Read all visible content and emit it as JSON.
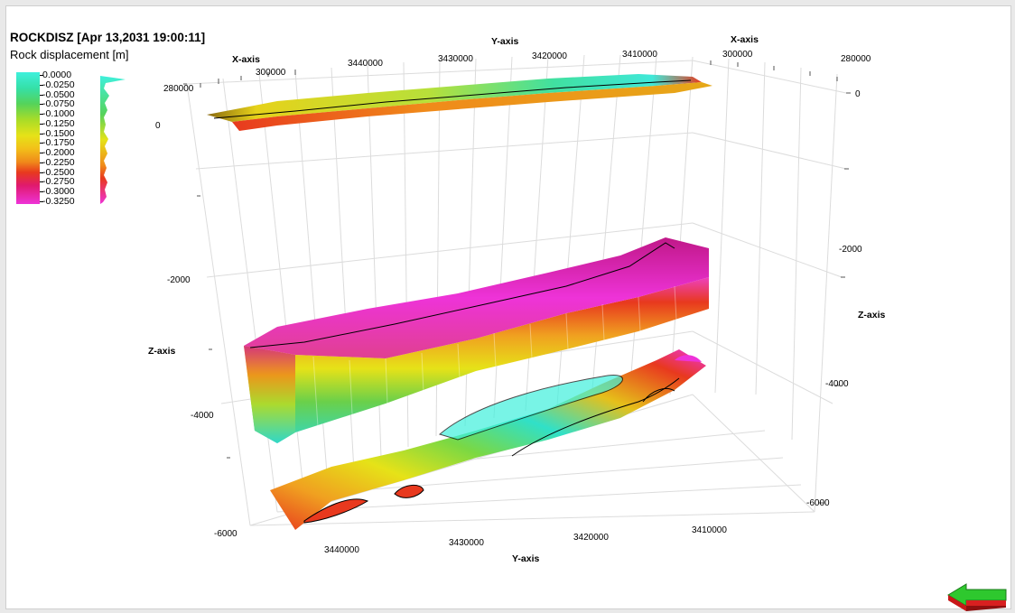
{
  "title": "ROCKDISZ [Apr 13,2031 19:00:11]",
  "subtitle": "Rock displacement [m]",
  "colorbar": {
    "labels": [
      "0.0000",
      "-0.0250",
      "-0.0500",
      "-0.0750",
      "-0.1000",
      "-0.1250",
      "-0.1500",
      "-0.1750",
      "-0.2000",
      "-0.2250",
      "-0.2500",
      "-0.2750",
      "-0.3000",
      "-0.3250"
    ]
  },
  "axes": {
    "x_axis_left": "X-axis",
    "x_axis_right": "X-axis",
    "y_axis_top": "Y-axis",
    "y_axis_bottom": "Y-axis",
    "z_axis_left": "Z-axis",
    "z_axis_right": "Z-axis",
    "x_ticks_left": [
      "280000",
      "300000"
    ],
    "x_ticks_right": [
      "300000",
      "280000"
    ],
    "y_ticks_top": [
      "3440000",
      "3430000",
      "3420000",
      "3410000"
    ],
    "y_ticks_bottom": [
      "3440000",
      "3430000",
      "3420000",
      "3410000"
    ],
    "z_ticks_left": [
      "0",
      "-2000",
      "-4000",
      "-6000"
    ],
    "z_ticks_right": [
      "0",
      "-2000",
      "-4000",
      "-6000"
    ]
  },
  "colors": {
    "cyan": "#3ff0dc",
    "green": "#55d35a",
    "yellow": "#e6e218",
    "orange": "#f08a1a",
    "red": "#e8391e",
    "magenta": "#ee33d8"
  },
  "icons": {
    "navigation": "arrow-left-icon"
  }
}
